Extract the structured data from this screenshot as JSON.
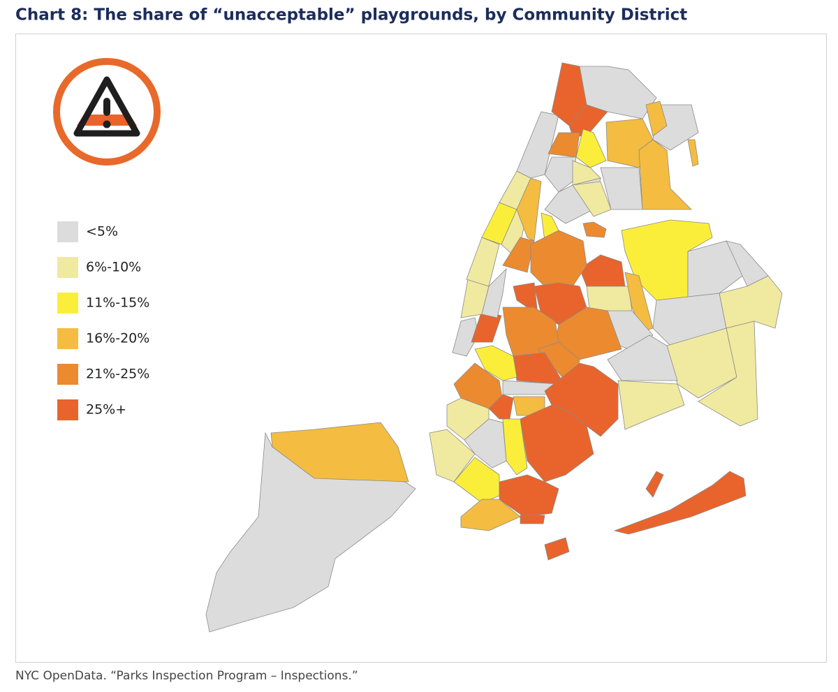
{
  "title": "Chart 8: The share of “unacceptable” playgrounds, by Community District",
  "legend": [
    {
      "label": "<5%",
      "color": "#dcdcdc"
    },
    {
      "label": "6%-10%",
      "color": "#f0e9a0"
    },
    {
      "label": "11%-15%",
      "color": "#fbee3a"
    },
    {
      "label": "16%-20%",
      "color": "#f4bc40"
    },
    {
      "label": "21%-25%",
      "color": "#ec8a30"
    },
    {
      "label": "25%+",
      "color": "#e8642c"
    }
  ],
  "source": "NYC OpenData. “Parks Inspection Program – Inspections.”"
}
